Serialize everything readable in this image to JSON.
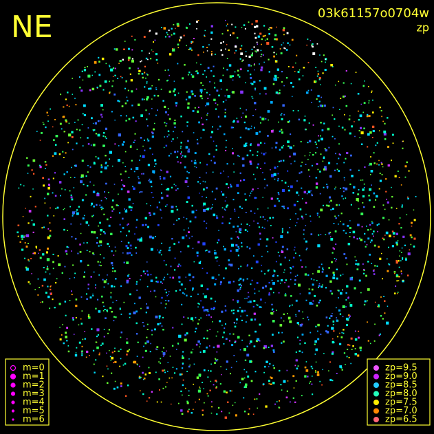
{
  "header": {
    "direction": "NE",
    "frame_id": "03k61157o0704w",
    "mode": "zp"
  },
  "legend_magnitude": [
    "m=0",
    "m=1",
    "m=2",
    "m=3",
    "m=4",
    "m=5",
    "m=6"
  ],
  "legend_zp": [
    "zp=9.5",
    "zp=9.0",
    "zp=8.5",
    "zp=8.0",
    "zp=7.5",
    "zp=7.0",
    "zp=6.5"
  ]
}
